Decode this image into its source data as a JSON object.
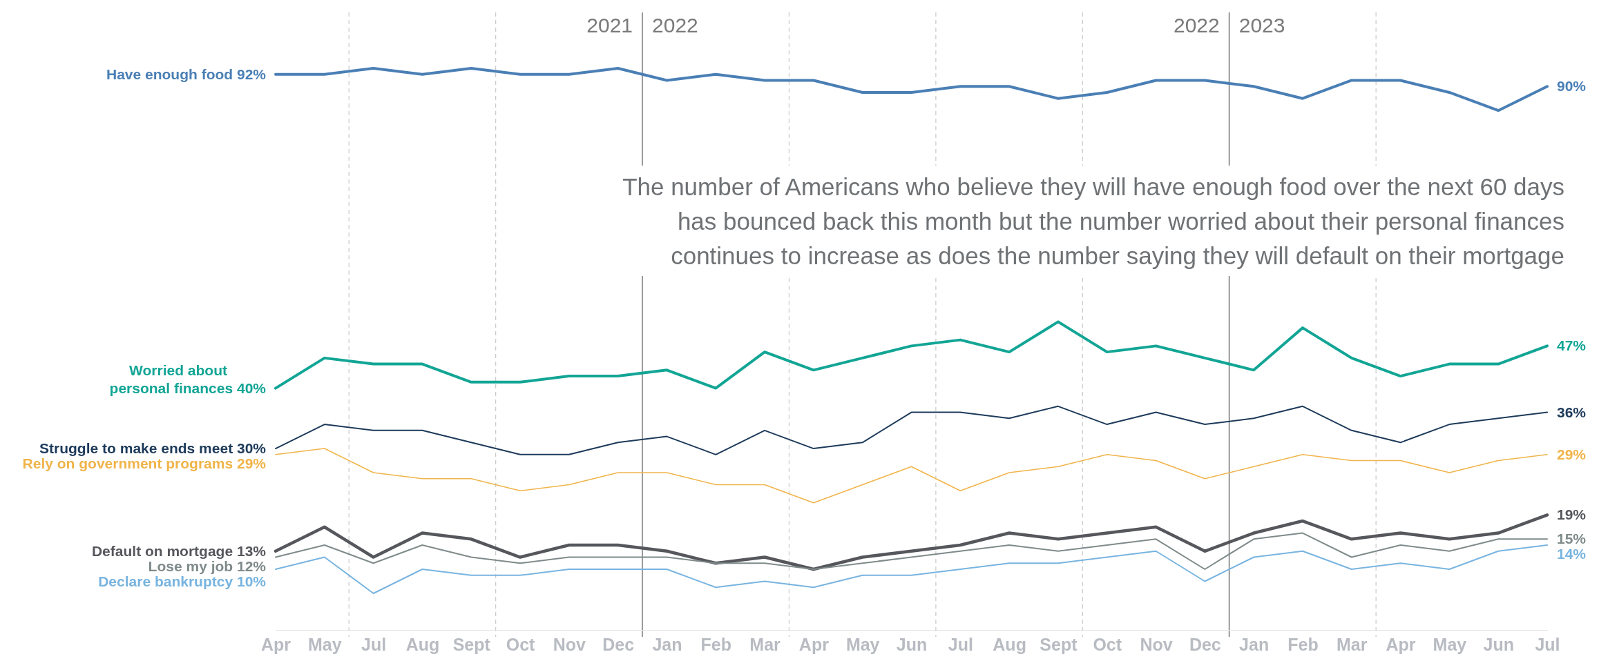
{
  "chart_data": {
    "type": "line",
    "title": "The number of Americans who believe they will have enough food over the next 60 days has bounced back this month but the number worried about their personal finances continues to increase as does the number saying they will default on their mortgage",
    "categories": [
      "Apr",
      "May",
      "Jul",
      "Aug",
      "Sept",
      "Oct",
      "Nov",
      "Dec",
      "Jan",
      "Feb",
      "Mar",
      "Apr",
      "May",
      "Jun",
      "Jul",
      "Aug",
      "Sept",
      "Oct",
      "Nov",
      "Dec",
      "Jan",
      "Feb",
      "Mar",
      "Apr",
      "May",
      "Jun",
      "Jul"
    ],
    "tick_labels": "x",
    "grid": false,
    "legend": false,
    "marker": "none",
    "line_style": "solid",
    "series": [
      {
        "name": "Have enough food",
        "color": "#4a7fb5",
        "values": [
          92,
          92,
          93,
          92,
          93,
          92,
          92,
          93,
          91,
          92,
          91,
          91,
          89,
          89,
          90,
          90,
          88,
          89,
          91,
          91,
          90,
          88,
          91,
          91,
          89,
          86,
          90
        ],
        "value_labels": [
          "92%",
          null,
          null,
          null,
          null,
          null,
          null,
          null,
          null,
          null,
          null,
          null,
          null,
          null,
          null,
          null,
          null,
          null,
          null,
          null,
          null,
          null,
          null,
          null,
          null,
          null,
          "90%"
        ]
      },
      {
        "name": "Worried about personal finances",
        "color": "#12a595",
        "values": [
          40,
          45,
          44,
          44,
          41,
          41,
          42,
          42,
          43,
          40,
          46,
          43,
          45,
          47,
          48,
          46,
          51,
          46,
          47,
          45,
          43,
          50,
          45,
          42,
          44,
          44,
          47
        ],
        "value_labels": [
          "40%",
          null,
          null,
          null,
          null,
          null,
          null,
          null,
          null,
          null,
          null,
          null,
          null,
          null,
          null,
          null,
          null,
          null,
          null,
          null,
          null,
          null,
          null,
          null,
          null,
          null,
          "47%"
        ]
      },
      {
        "name": "Struggle to make ends meet",
        "color": "#1d3a5a",
        "values": [
          30,
          34,
          33,
          33,
          31,
          29,
          29,
          31,
          32,
          29,
          33,
          30,
          31,
          36,
          36,
          35,
          37,
          34,
          36,
          34,
          35,
          37,
          33,
          31,
          34,
          35,
          36
        ],
        "value_labels": [
          "30%",
          null,
          null,
          null,
          null,
          null,
          null,
          null,
          null,
          null,
          null,
          null,
          null,
          null,
          null,
          null,
          null,
          null,
          null,
          null,
          null,
          null,
          null,
          null,
          null,
          null,
          "36%"
        ]
      },
      {
        "name": "Rely on government programs",
        "color": "#f0b44a",
        "values": [
          29,
          30,
          26,
          25,
          25,
          23,
          24,
          26,
          26,
          24,
          24,
          21,
          24,
          27,
          23,
          26,
          27,
          29,
          28,
          25,
          27,
          29,
          28,
          28,
          26,
          28,
          29
        ],
        "value_labels": [
          "29%",
          null,
          null,
          null,
          null,
          null,
          null,
          null,
          null,
          null,
          null,
          null,
          null,
          null,
          null,
          null,
          null,
          null,
          null,
          null,
          null,
          null,
          null,
          null,
          null,
          null,
          "29%"
        ]
      },
      {
        "name": "Default on mortgage",
        "color": "#56575c",
        "values": [
          13,
          17,
          12,
          16,
          15,
          12,
          14,
          14,
          13,
          11,
          12,
          10,
          12,
          13,
          14,
          16,
          15,
          16,
          17,
          13,
          16,
          18,
          15,
          16,
          15,
          16,
          19
        ],
        "value_labels": [
          "13%",
          null,
          null,
          null,
          null,
          null,
          null,
          null,
          null,
          null,
          null,
          null,
          null,
          null,
          null,
          null,
          null,
          null,
          null,
          null,
          null,
          null,
          null,
          null,
          null,
          null,
          "19%"
        ]
      },
      {
        "name": "Lose my job",
        "color": "#7f8a8a",
        "values": [
          12,
          14,
          11,
          14,
          12,
          11,
          12,
          12,
          12,
          11,
          11,
          10,
          11,
          12,
          13,
          14,
          13,
          14,
          15,
          10,
          15,
          16,
          12,
          14,
          13,
          15,
          15
        ],
        "value_labels": [
          "12%",
          null,
          null,
          null,
          null,
          null,
          null,
          null,
          null,
          null,
          null,
          null,
          null,
          null,
          null,
          null,
          null,
          null,
          null,
          null,
          null,
          null,
          null,
          null,
          null,
          null,
          "15%"
        ]
      },
      {
        "name": "Declare bankruptcy",
        "color": "#78b4e0",
        "values": [
          10,
          12,
          6,
          10,
          9,
          9,
          10,
          10,
          10,
          7,
          8,
          7,
          9,
          9,
          10,
          11,
          11,
          12,
          13,
          8,
          12,
          13,
          10,
          11,
          10,
          13,
          14
        ],
        "value_labels": [
          "10%",
          null,
          null,
          null,
          null,
          null,
          null,
          null,
          null,
          null,
          null,
          null,
          null,
          null,
          null,
          null,
          null,
          null,
          null,
          null,
          null,
          null,
          null,
          null,
          null,
          null,
          "14%"
        ]
      }
    ],
    "annotations": [
      "2021",
      "2022",
      "2022",
      "2023"
    ]
  }
}
